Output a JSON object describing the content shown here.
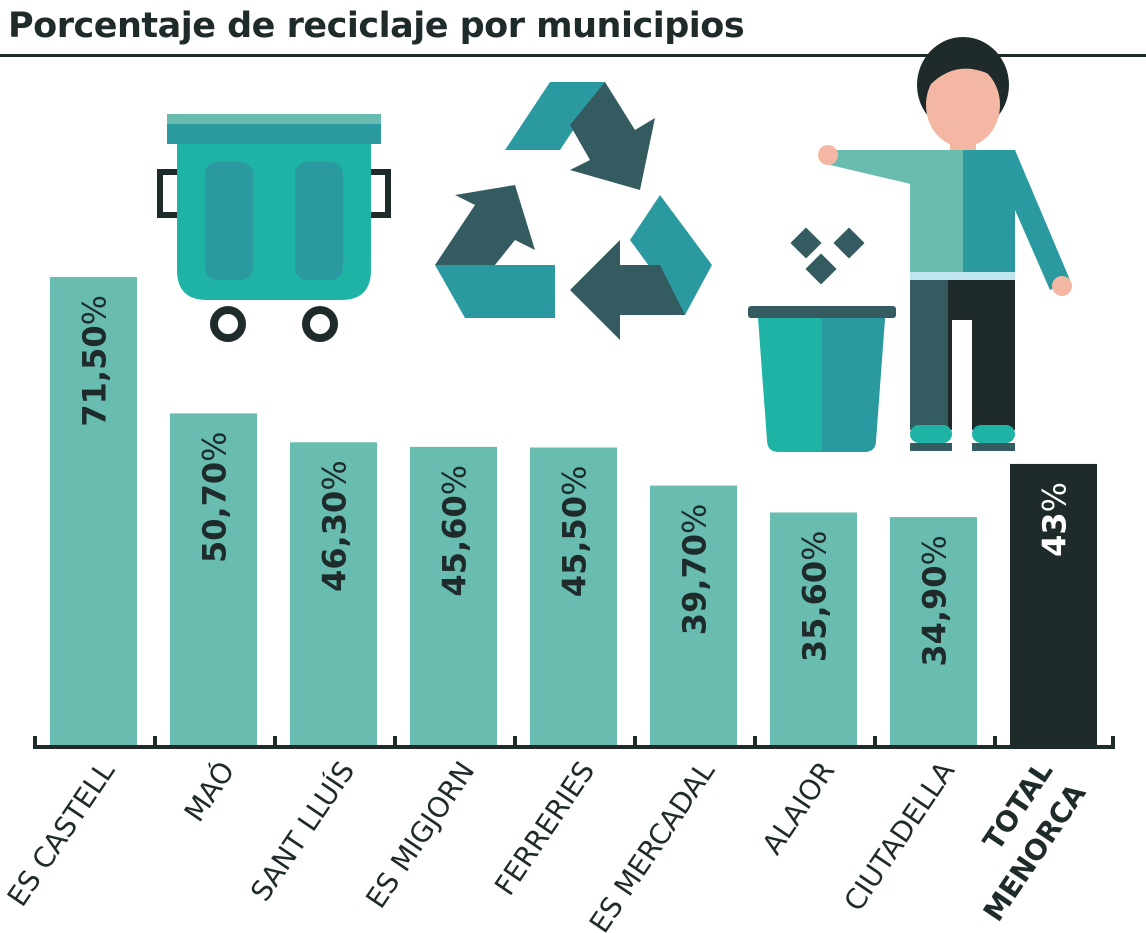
{
  "chart_data": {
    "type": "bar",
    "title": "Porcentaje de reciclaje por municipios",
    "xlabel": "",
    "ylabel": "",
    "ylim": [
      0,
      72
    ],
    "grid": false,
    "categories": [
      "ES CASTELL",
      "MAÓ",
      "SANT LLUÍS",
      "ES MIGJORN",
      "FERRERIES",
      "ES MERCADAL",
      "ALAIOR",
      "CIUTADELLA",
      "TOTAL MENORCA"
    ],
    "values": [
      71.5,
      50.7,
      46.3,
      45.6,
      45.5,
      39.7,
      35.6,
      34.9,
      43
    ],
    "value_labels": [
      "71,50",
      "50,70",
      "46,30",
      "45,60",
      "45,50",
      "39,70",
      "35,60",
      "34,90",
      "43"
    ],
    "unit": "%",
    "highlight_index": 8,
    "colors": {
      "bar": "#68bdb0",
      "highlight": "#1f2b2b",
      "text": "#1f2b2b",
      "highlight_text": "#ffffff"
    }
  }
}
